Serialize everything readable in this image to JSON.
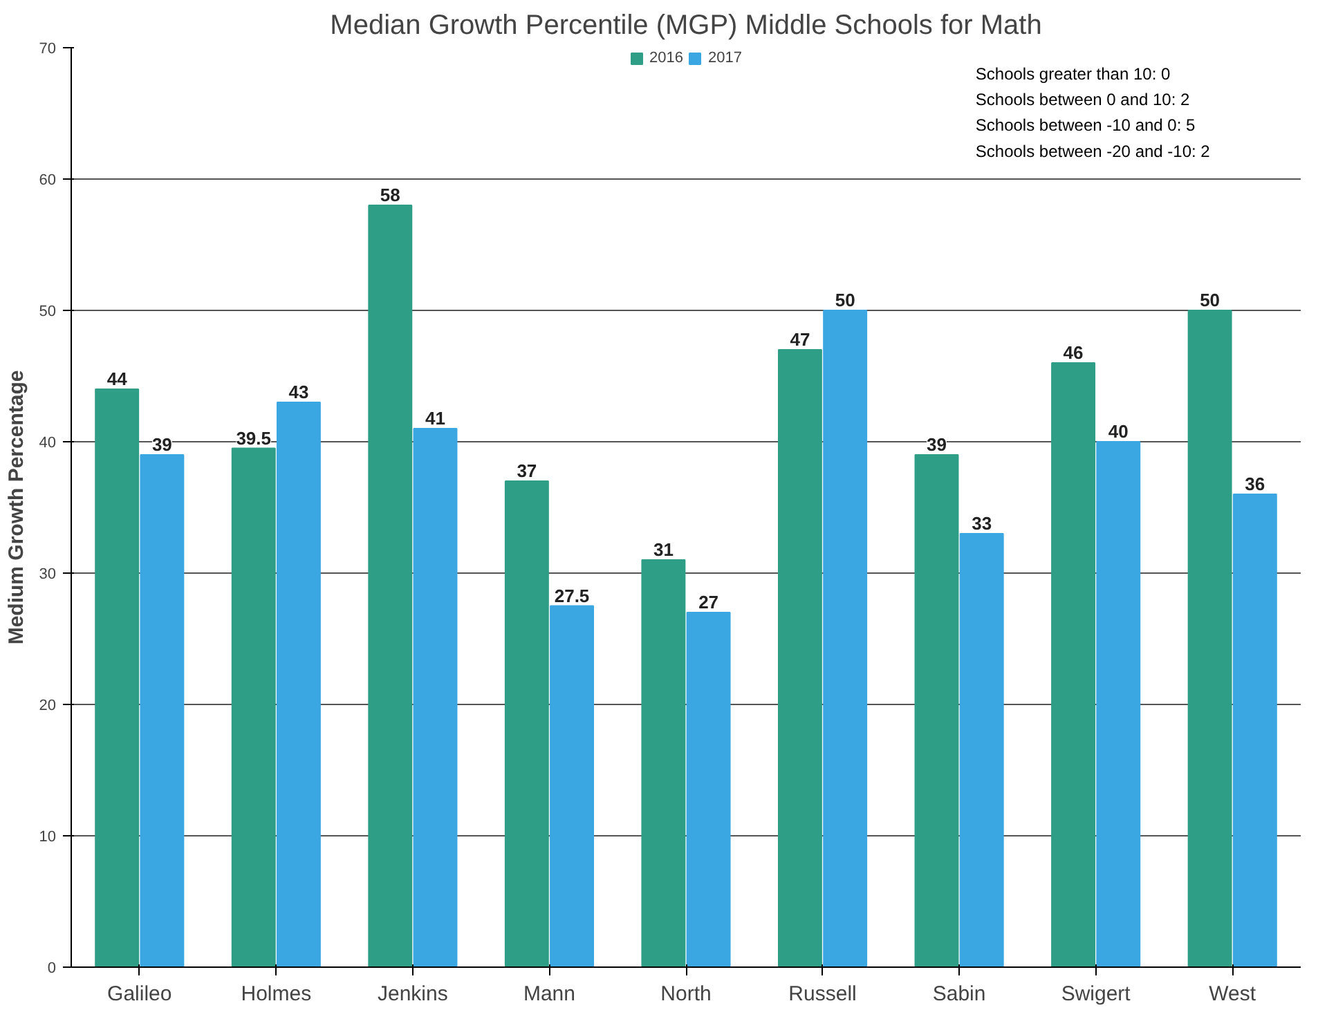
{
  "chart_data": {
    "type": "bar",
    "title": "Median Growth Percentile (MGP) Middle Schools for Math",
    "ylabel": "Medium Growth Percentage",
    "categories": [
      "Galileo",
      "Holmes",
      "Jenkins",
      "Mann",
      "North",
      "Russell",
      "Sabin",
      "Swigert",
      "West"
    ],
    "series": [
      {
        "name": "2016",
        "color": "#2e9e86",
        "values": [
          44,
          39.5,
          58,
          37,
          31,
          47,
          39,
          46,
          50
        ]
      },
      {
        "name": "2017",
        "color": "#3aa6e2",
        "values": [
          39,
          43,
          41,
          27.5,
          27,
          50,
          33,
          40,
          36
        ]
      }
    ],
    "ylim": [
      0,
      70
    ],
    "yticks": [
      0,
      10,
      20,
      30,
      40,
      50,
      60,
      70
    ],
    "grid": "y",
    "legend": "top",
    "data_labels": true,
    "annotations": [
      "Schools greater than 10:  0",
      "Schools  between 0 and 10:  2",
      "Schools  between -10 and 0:  5",
      "Schools between -20 and -10:  2"
    ]
  }
}
